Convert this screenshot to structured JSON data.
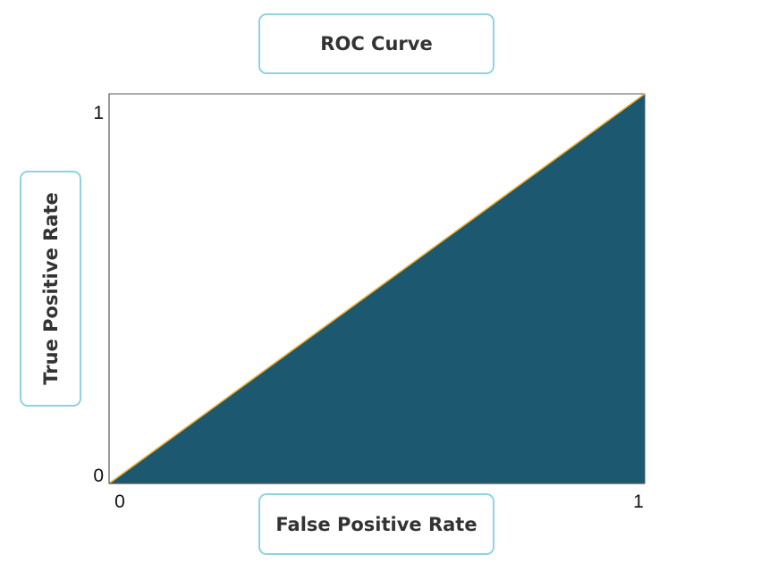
{
  "chart_data": {
    "type": "area",
    "title": "ROC Curve",
    "xlabel": "False Positive Rate",
    "ylabel": "True Positive Rate",
    "xlim": [
      0,
      1
    ],
    "ylim": [
      0,
      1
    ],
    "x_ticks": [
      "0",
      "1"
    ],
    "y_ticks": [
      "0",
      "1"
    ],
    "grid": false,
    "series": [
      {
        "x": [
          0,
          1
        ],
        "y": [
          0,
          1
        ],
        "fill_color": "#1c5870",
        "line_color": "#f2b42e"
      }
    ]
  }
}
